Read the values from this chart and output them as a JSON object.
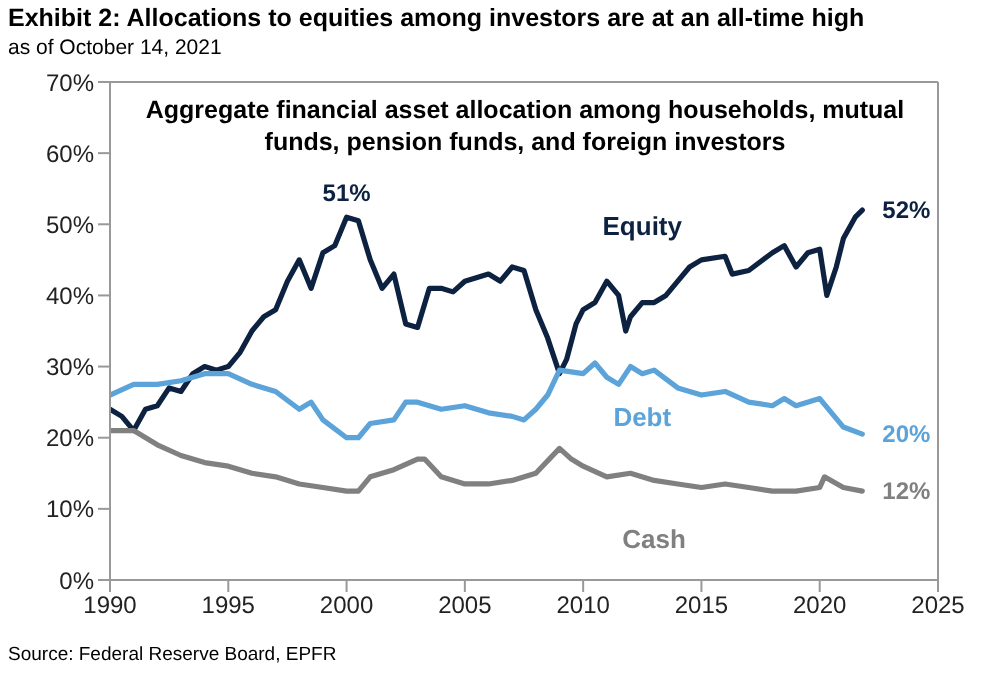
{
  "chart_data": {
    "type": "line",
    "title": "Exhibit 2: Allocations to equities among investors are at an all-time high",
    "subtitle": "as of October 14, 2021",
    "annotations": [
      "Aggregate financial asset allocation among households, mutual funds, pension funds, and foreign investors",
      "Source: Federal Reserve Board, EPFR"
    ],
    "xlim": [
      1990,
      2025
    ],
    "xticks": [
      1990,
      1995,
      2000,
      2005,
      2010,
      2015,
      2020,
      2025
    ],
    "ylim": [
      0,
      70
    ],
    "yticks": [
      {
        "value": 0,
        "label": "0%"
      },
      {
        "value": 10,
        "label": "10%"
      },
      {
        "value": 20,
        "label": "20%"
      },
      {
        "value": 30,
        "label": "30%"
      },
      {
        "value": 40,
        "label": "40%"
      },
      {
        "value": 50,
        "label": "50%"
      },
      {
        "value": 60,
        "label": "60%"
      },
      {
        "value": 70,
        "label": "70%"
      }
    ],
    "grid": false,
    "legend": false,
    "marker": "none",
    "line_style": "solid",
    "series": [
      {
        "name": "Equity",
        "color": "#0d2240",
        "x": [
          1990,
          1990.5,
          1991,
          1991.5,
          1992,
          1992.5,
          1993,
          1993.5,
          1994,
          1994.5,
          1995,
          1995.5,
          1996,
          1996.5,
          1997,
          1997.5,
          1998,
          1998.5,
          1999,
          1999.5,
          2000,
          2000.5,
          2001,
          2001.5,
          2002,
          2002.5,
          2003,
          2003.5,
          2004,
          2004.5,
          2005,
          2006,
          2006.5,
          2007,
          2007.5,
          2008,
          2008.5,
          2009,
          2009.3,
          2009.7,
          2010,
          2010.5,
          2011,
          2011.5,
          2011.8,
          2012,
          2012.5,
          2013,
          2013.5,
          2014,
          2014.5,
          2015,
          2016,
          2016.3,
          2017,
          2018,
          2018.5,
          2019,
          2019.5,
          2020,
          2020.3,
          2020.7,
          2021,
          2021.5,
          2021.8
        ],
        "values": [
          24,
          23,
          21,
          24,
          24.5,
          27,
          26.5,
          29,
          30,
          29.5,
          30,
          32,
          35,
          37,
          38,
          42,
          45,
          41,
          46,
          47,
          51,
          50.5,
          45,
          41,
          43,
          36,
          35.5,
          41,
          41,
          40.5,
          42,
          43,
          42,
          44,
          43.5,
          38,
          34,
          29,
          31,
          36,
          38,
          39,
          42,
          40,
          35,
          37,
          39,
          39,
          40,
          42,
          44,
          45,
          45.5,
          43,
          43.5,
          46,
          47,
          44,
          46,
          46.5,
          40,
          44,
          48,
          51,
          52
        ],
        "value_labels": [
          null,
          null,
          null,
          null,
          null,
          null,
          null,
          null,
          null,
          null,
          null,
          null,
          null,
          null,
          null,
          null,
          null,
          null,
          null,
          null,
          "51%",
          null,
          null,
          null,
          null,
          null,
          null,
          null,
          null,
          null,
          null,
          null,
          null,
          null,
          null,
          null,
          null,
          null,
          null,
          null,
          null,
          null,
          null,
          null,
          null,
          null,
          null,
          null,
          null,
          null,
          null,
          null,
          null,
          null,
          null,
          null,
          null,
          null,
          null,
          null,
          null,
          null,
          null,
          null,
          "52%"
        ]
      },
      {
        "name": "Debt",
        "color": "#5ba3d9",
        "x": [
          1990,
          1991,
          1992,
          1993,
          1994,
          1995,
          1996,
          1997,
          1998,
          1998.5,
          1999,
          2000,
          2000.5,
          2001,
          2002,
          2002.5,
          2003,
          2004,
          2005,
          2006,
          2007,
          2007.5,
          2008,
          2008.5,
          2009,
          2010,
          2010.5,
          2011,
          2011.5,
          2012,
          2012.5,
          2013,
          2014,
          2015,
          2016,
          2017,
          2018,
          2018.5,
          2019,
          2020,
          2020.5,
          2021,
          2021.8
        ],
        "values": [
          26,
          27.5,
          27.5,
          28,
          29,
          29,
          27.5,
          26.5,
          24,
          25,
          22.5,
          20,
          20,
          22,
          22.5,
          25,
          25,
          24,
          24.5,
          23.5,
          23,
          22.5,
          24,
          26,
          29.5,
          29,
          30.5,
          28.5,
          27.5,
          30,
          29,
          29.5,
          27,
          26,
          26.5,
          25,
          24.5,
          25.5,
          24.5,
          25.5,
          23.5,
          21.5,
          20.5
        ],
        "value_labels": [
          null,
          null,
          null,
          null,
          null,
          null,
          null,
          null,
          null,
          null,
          null,
          null,
          null,
          null,
          null,
          null,
          null,
          null,
          null,
          null,
          null,
          null,
          null,
          null,
          null,
          null,
          null,
          null,
          null,
          null,
          null,
          null,
          null,
          null,
          null,
          null,
          null,
          null,
          null,
          null,
          null,
          null,
          "20%"
        ]
      },
      {
        "name": "Cash",
        "color": "#808080",
        "x": [
          1990,
          1991,
          1992,
          1993,
          1994,
          1995,
          1996,
          1997,
          1998,
          1999,
          2000,
          2000.5,
          2001,
          2002,
          2003,
          2003.3,
          2004,
          2005,
          2006,
          2007,
          2008,
          2009,
          2009.5,
          2010,
          2011,
          2012,
          2013,
          2014,
          2015,
          2016,
          2017,
          2018,
          2019,
          2020,
          2020.2,
          2021,
          2021.8
        ],
        "values": [
          21,
          21,
          19,
          17.5,
          16.5,
          16,
          15,
          14.5,
          13.5,
          13,
          12.5,
          12.5,
          14.5,
          15.5,
          17,
          17,
          14.5,
          13.5,
          13.5,
          14,
          15,
          18.5,
          17,
          16,
          14.5,
          15,
          14,
          13.5,
          13,
          13.5,
          13,
          12.5,
          12.5,
          13,
          14.5,
          13,
          12.5
        ],
        "value_labels": [
          null,
          null,
          null,
          null,
          null,
          null,
          null,
          null,
          null,
          null,
          null,
          null,
          null,
          null,
          null,
          null,
          null,
          null,
          null,
          null,
          null,
          null,
          null,
          null,
          null,
          null,
          null,
          null,
          null,
          null,
          null,
          null,
          null,
          null,
          null,
          null,
          "12%"
        ]
      }
    ]
  }
}
